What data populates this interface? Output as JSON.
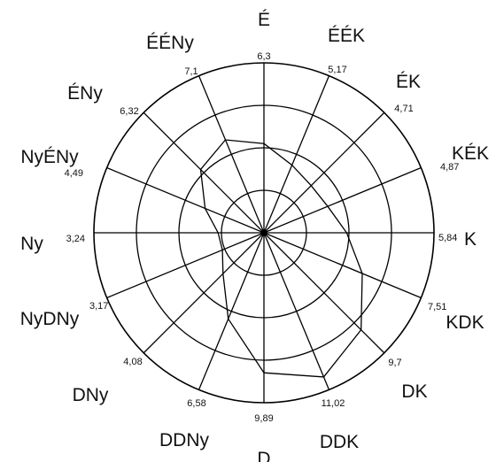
{
  "chart_data": {
    "type": "radar",
    "directions": [
      "É",
      "ÉÉK",
      "ÉK",
      "KÉK",
      "K",
      "KDK",
      "DK",
      "DDK",
      "D",
      "DDNy",
      "DNy",
      "NyDNy",
      "Ny",
      "NyÉNy",
      "ÉNy",
      "ÉÉNy"
    ],
    "value_labels": [
      "6,3",
      "5,17",
      "4,71",
      "4,87",
      "5,84",
      "7,51",
      "9,7",
      "11,02",
      "9,89",
      "6,58",
      "4,08",
      "3,17",
      "3,24",
      "4,49",
      "6,32",
      "7,1"
    ],
    "values": [
      6.3,
      5.17,
      4.71,
      4.87,
      5.84,
      7.51,
      9.7,
      11.02,
      9.89,
      6.58,
      4.08,
      3.17,
      3.24,
      4.49,
      6.32,
      7.1
    ],
    "rlim": [
      0,
      12
    ],
    "rings": [
      3,
      6,
      9,
      12
    ],
    "line_color": "#000000"
  }
}
